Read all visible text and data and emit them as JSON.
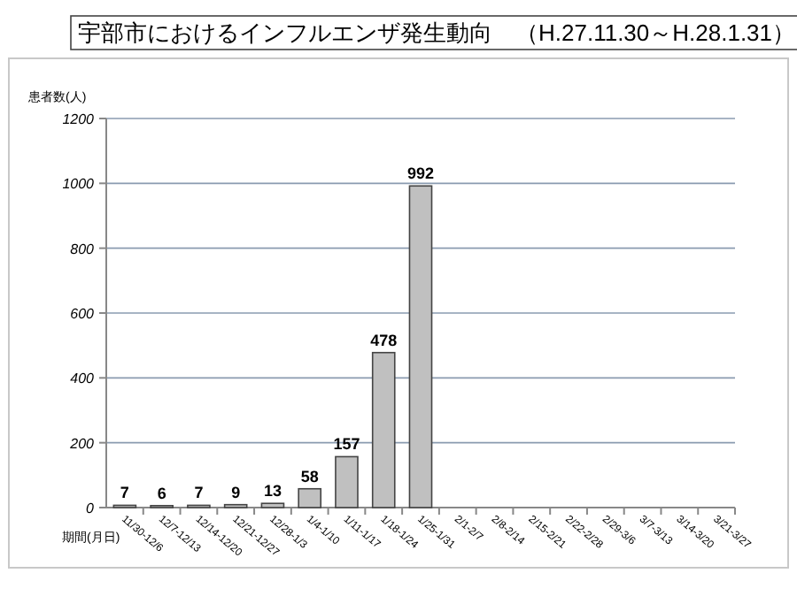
{
  "chart_data": {
    "type": "bar",
    "title": "宇部市におけるインフルエンザ発生動向　（H.27.11.30～H.28.1.31）",
    "ylabel": "患者数(人)",
    "xlabel": "期間(月日)",
    "categories": [
      "11/30-12/6",
      "12/7-12/13",
      "12/14-12/20",
      "12/21-12/27",
      "12/28-1/3",
      "1/4-1/10",
      "1/11-1/17",
      "1/18-1/24",
      "1/25-1/31",
      "2/1-2/7",
      "2/8-2/14",
      "2/15-2/21",
      "2/22-2/28",
      "2/29-3/6",
      "3/7-3/13",
      "3/14-3/20",
      "3/21-3/27"
    ],
    "values": [
      7,
      6,
      7,
      9,
      13,
      58,
      157,
      478,
      992,
      null,
      null,
      null,
      null,
      null,
      null,
      null,
      null
    ],
    "color": "#c0c0c0",
    "ylim": [
      0,
      1200
    ],
    "yticks": [
      0,
      200,
      400,
      600,
      800,
      1000,
      1200
    ],
    "grid": "y",
    "data_labels": true
  }
}
